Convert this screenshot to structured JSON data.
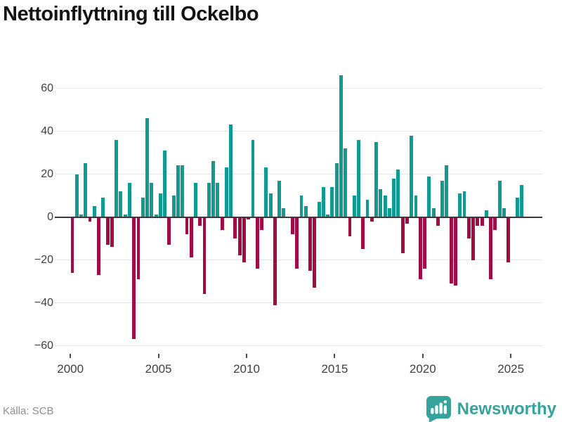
{
  "title": "Nettoinflyttning till Ockelbo",
  "source": {
    "text": "Källa: SCB"
  },
  "brand": {
    "name": "Newsworthy",
    "color": "#35a29b"
  },
  "colors": {
    "positive_bar": "#0f9b92",
    "negative_bar": "#a30b45",
    "zero_line": "#3a3a3a",
    "gridline": "#e7e7e7",
    "tick_label": "#3f3f3f",
    "title": "#141414",
    "source_text": "#8f8f8f"
  },
  "chart_data": {
    "type": "bar",
    "title": "Nettoinflyttning till Ockelbo",
    "xlabel": "",
    "ylabel": "",
    "x_unit": "quarter",
    "start_period": "2000 Q1",
    "end_period": "2025 Q3",
    "x_tick_labels": [
      "2000",
      "2005",
      "2010",
      "2015",
      "2020",
      "2025"
    ],
    "y_ticks": [
      60,
      40,
      20,
      0,
      -20,
      -40,
      -60
    ],
    "ylim": [
      -65,
      69
    ],
    "grid": true,
    "legend": false,
    "series": [
      {
        "name": "Nettoinflyttning",
        "values": [
          -26,
          20,
          1,
          25,
          -2,
          5,
          -27,
          9,
          -13,
          -14,
          36,
          12,
          1,
          16,
          -57,
          -29,
          9,
          46,
          16,
          1,
          11,
          31,
          -13,
          10,
          24,
          24,
          -8,
          -19,
          16,
          -4,
          -36,
          16,
          26,
          16,
          -6,
          23,
          43,
          -10,
          -18,
          -21,
          -1,
          36,
          -24,
          -6,
          23,
          11,
          -41,
          17,
          4,
          0,
          -8,
          -24,
          10,
          5,
          -25,
          -33,
          7,
          14,
          1,
          14,
          25,
          66,
          32,
          -9,
          10,
          36,
          -15,
          8,
          -2,
          35,
          13,
          10,
          4,
          18,
          22,
          -17,
          -3,
          38,
          10,
          -29,
          -24,
          19,
          4,
          -4,
          17,
          24,
          -31,
          -32,
          11,
          12,
          -10,
          -20,
          -4,
          -4,
          3,
          -29,
          -6,
          17,
          4,
          -21,
          0,
          9,
          15
        ]
      }
    ]
  }
}
